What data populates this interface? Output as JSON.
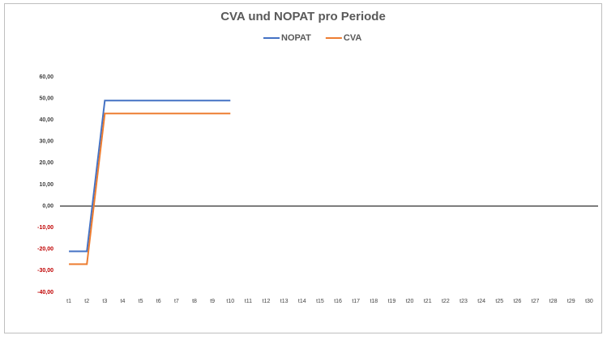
{
  "chart_data": {
    "type": "line",
    "title": "CVA und NOPAT pro Periode",
    "categories": [
      "t1",
      "t2",
      "t3",
      "t4",
      "t5",
      "t6",
      "t7",
      "t8",
      "t9",
      "t10",
      "t11",
      "t12",
      "t13",
      "t14",
      "t15",
      "t16",
      "t17",
      "t18",
      "t19",
      "t20",
      "t21",
      "t22",
      "t23",
      "t24",
      "t25",
      "t26",
      "t27",
      "t28",
      "t29",
      "t30"
    ],
    "series": [
      {
        "name": "NOPAT",
        "color": "#4472c4",
        "values": [
          -21,
          -21,
          49,
          49,
          49,
          49,
          49,
          49,
          49,
          49,
          null,
          null,
          null,
          null,
          null,
          null,
          null,
          null,
          null,
          null,
          null,
          null,
          null,
          null,
          null,
          null,
          null,
          null,
          null,
          null
        ]
      },
      {
        "name": "CVA",
        "color": "#ed7d31",
        "values": [
          -27,
          -27,
          43,
          43,
          43,
          43,
          43,
          43,
          43,
          43,
          null,
          null,
          null,
          null,
          null,
          null,
          null,
          null,
          null,
          null,
          null,
          null,
          null,
          null,
          null,
          null,
          null,
          null,
          null,
          null
        ]
      }
    ],
    "ylim": [
      -40,
      60
    ],
    "yticks": [
      {
        "value": -40,
        "label": "-40,00"
      },
      {
        "value": -30,
        "label": "-30,00"
      },
      {
        "value": -20,
        "label": "-20,00"
      },
      {
        "value": -10,
        "label": "-10,00"
      },
      {
        "value": 0,
        "label": "0,00"
      },
      {
        "value": 10,
        "label": "10,00"
      },
      {
        "value": 20,
        "label": "20,00"
      },
      {
        "value": 30,
        "label": "30,00"
      },
      {
        "value": 40,
        "label": "40,00"
      },
      {
        "value": 50,
        "label": "50,00"
      },
      {
        "value": 60,
        "label": "60,00"
      }
    ],
    "negative_tick_label_color": "#c00000",
    "zero_line": true,
    "grid": false,
    "legend": "top"
  }
}
